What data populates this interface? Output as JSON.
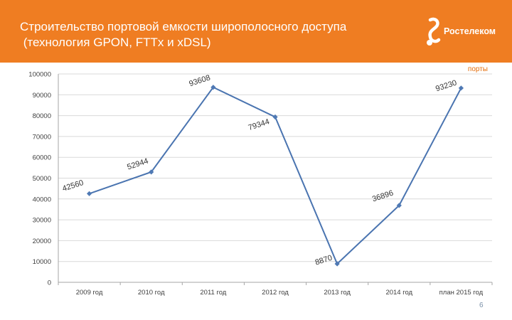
{
  "header": {
    "title_line1": "Строительство портовой емкости широполосного доступа",
    "title_line2": " (технология GPON, FTTx и xDSL)",
    "logo_text": "Ростелеком"
  },
  "colors": {
    "header_bg": "#ef7d22",
    "series_line": "#4a74b0",
    "series_marker": "#4f79b4",
    "legend_text": "#e36c09"
  },
  "chart_data": {
    "type": "line",
    "categories": [
      "2009 год",
      "2010 год",
      "2011 год",
      "2012 год",
      "2013 год",
      "2014 год",
      "план 2015 год"
    ],
    "series": [
      {
        "name": "порты",
        "values": [
          42560,
          52944,
          93608,
          79344,
          8870,
          36896,
          93230
        ]
      }
    ],
    "data_labels": [
      "42560",
      "52944",
      "93608",
      "79344",
      "8870",
      "36896",
      "93230"
    ],
    "y_ticks": [
      "0",
      "10000",
      "20000",
      "30000",
      "40000",
      "50000",
      "60000",
      "70000",
      "80000",
      "90000",
      "100000"
    ],
    "ylim": [
      0,
      100000
    ],
    "grid": true,
    "legend_position": "top-right"
  },
  "footer": {
    "page_number": "6"
  }
}
